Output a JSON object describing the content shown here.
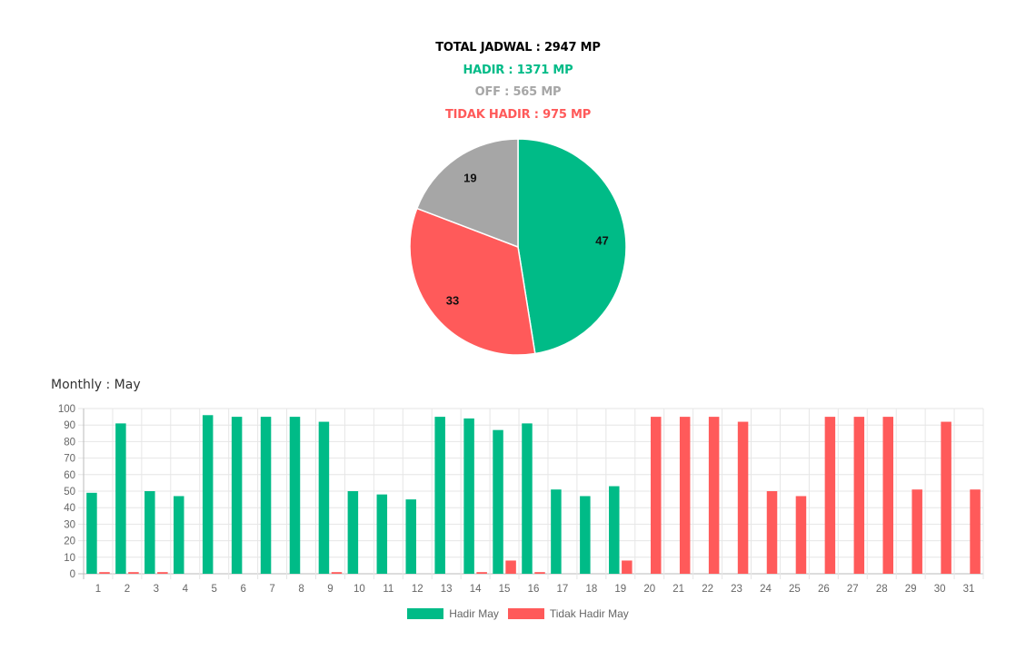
{
  "summary": {
    "total": "TOTAL JADWAL : 2947 MP",
    "hadir": "HADIR : 1371 MP",
    "off": "OFF : 565 MP",
    "tidak_hadir": "TIDAK HADIR : 975 MP"
  },
  "colors": {
    "hadir": "#00BB87",
    "off": "#A6A6A6",
    "tidak_hadir": "#FF5A5A",
    "total": "#000000"
  },
  "monthly_title": "Monthly : May",
  "chart_data": [
    {
      "type": "pie",
      "slices": [
        {
          "label": "47",
          "value": 47,
          "color": "#00BB87"
        },
        {
          "label": "33",
          "value": 33,
          "color": "#FF5A5A"
        },
        {
          "label": "19",
          "value": 19,
          "color": "#A6A6A6"
        }
      ]
    },
    {
      "type": "bar",
      "categories": [
        "1",
        "2",
        "3",
        "4",
        "5",
        "6",
        "7",
        "8",
        "9",
        "10",
        "11",
        "12",
        "13",
        "14",
        "15",
        "16",
        "17",
        "18",
        "19",
        "20",
        "21",
        "22",
        "23",
        "24",
        "25",
        "26",
        "27",
        "28",
        "29",
        "30",
        "31"
      ],
      "series": [
        {
          "name": "Hadir May",
          "color": "#00BB87",
          "values": [
            49,
            91,
            50,
            47,
            96,
            95,
            95,
            95,
            92,
            50,
            48,
            45,
            95,
            94,
            87,
            91,
            51,
            47,
            53,
            0,
            0,
            0,
            0,
            0,
            0,
            0,
            0,
            0,
            0,
            0,
            0
          ]
        },
        {
          "name": "Tidak Hadir May",
          "color": "#FF5A5A",
          "values": [
            1,
            1,
            1,
            0,
            0,
            0,
            0,
            0,
            1,
            0,
            0,
            0,
            0,
            1,
            8,
            1,
            0,
            0,
            8,
            95,
            95,
            95,
            92,
            50,
            47,
            95,
            95,
            95,
            51,
            92,
            51
          ]
        }
      ],
      "ylim": [
        0,
        100
      ],
      "yticks": [
        "0",
        "10",
        "20",
        "30",
        "40",
        "50",
        "60",
        "70",
        "80",
        "90",
        "100"
      ],
      "grid": true,
      "legend": "bottom"
    }
  ]
}
